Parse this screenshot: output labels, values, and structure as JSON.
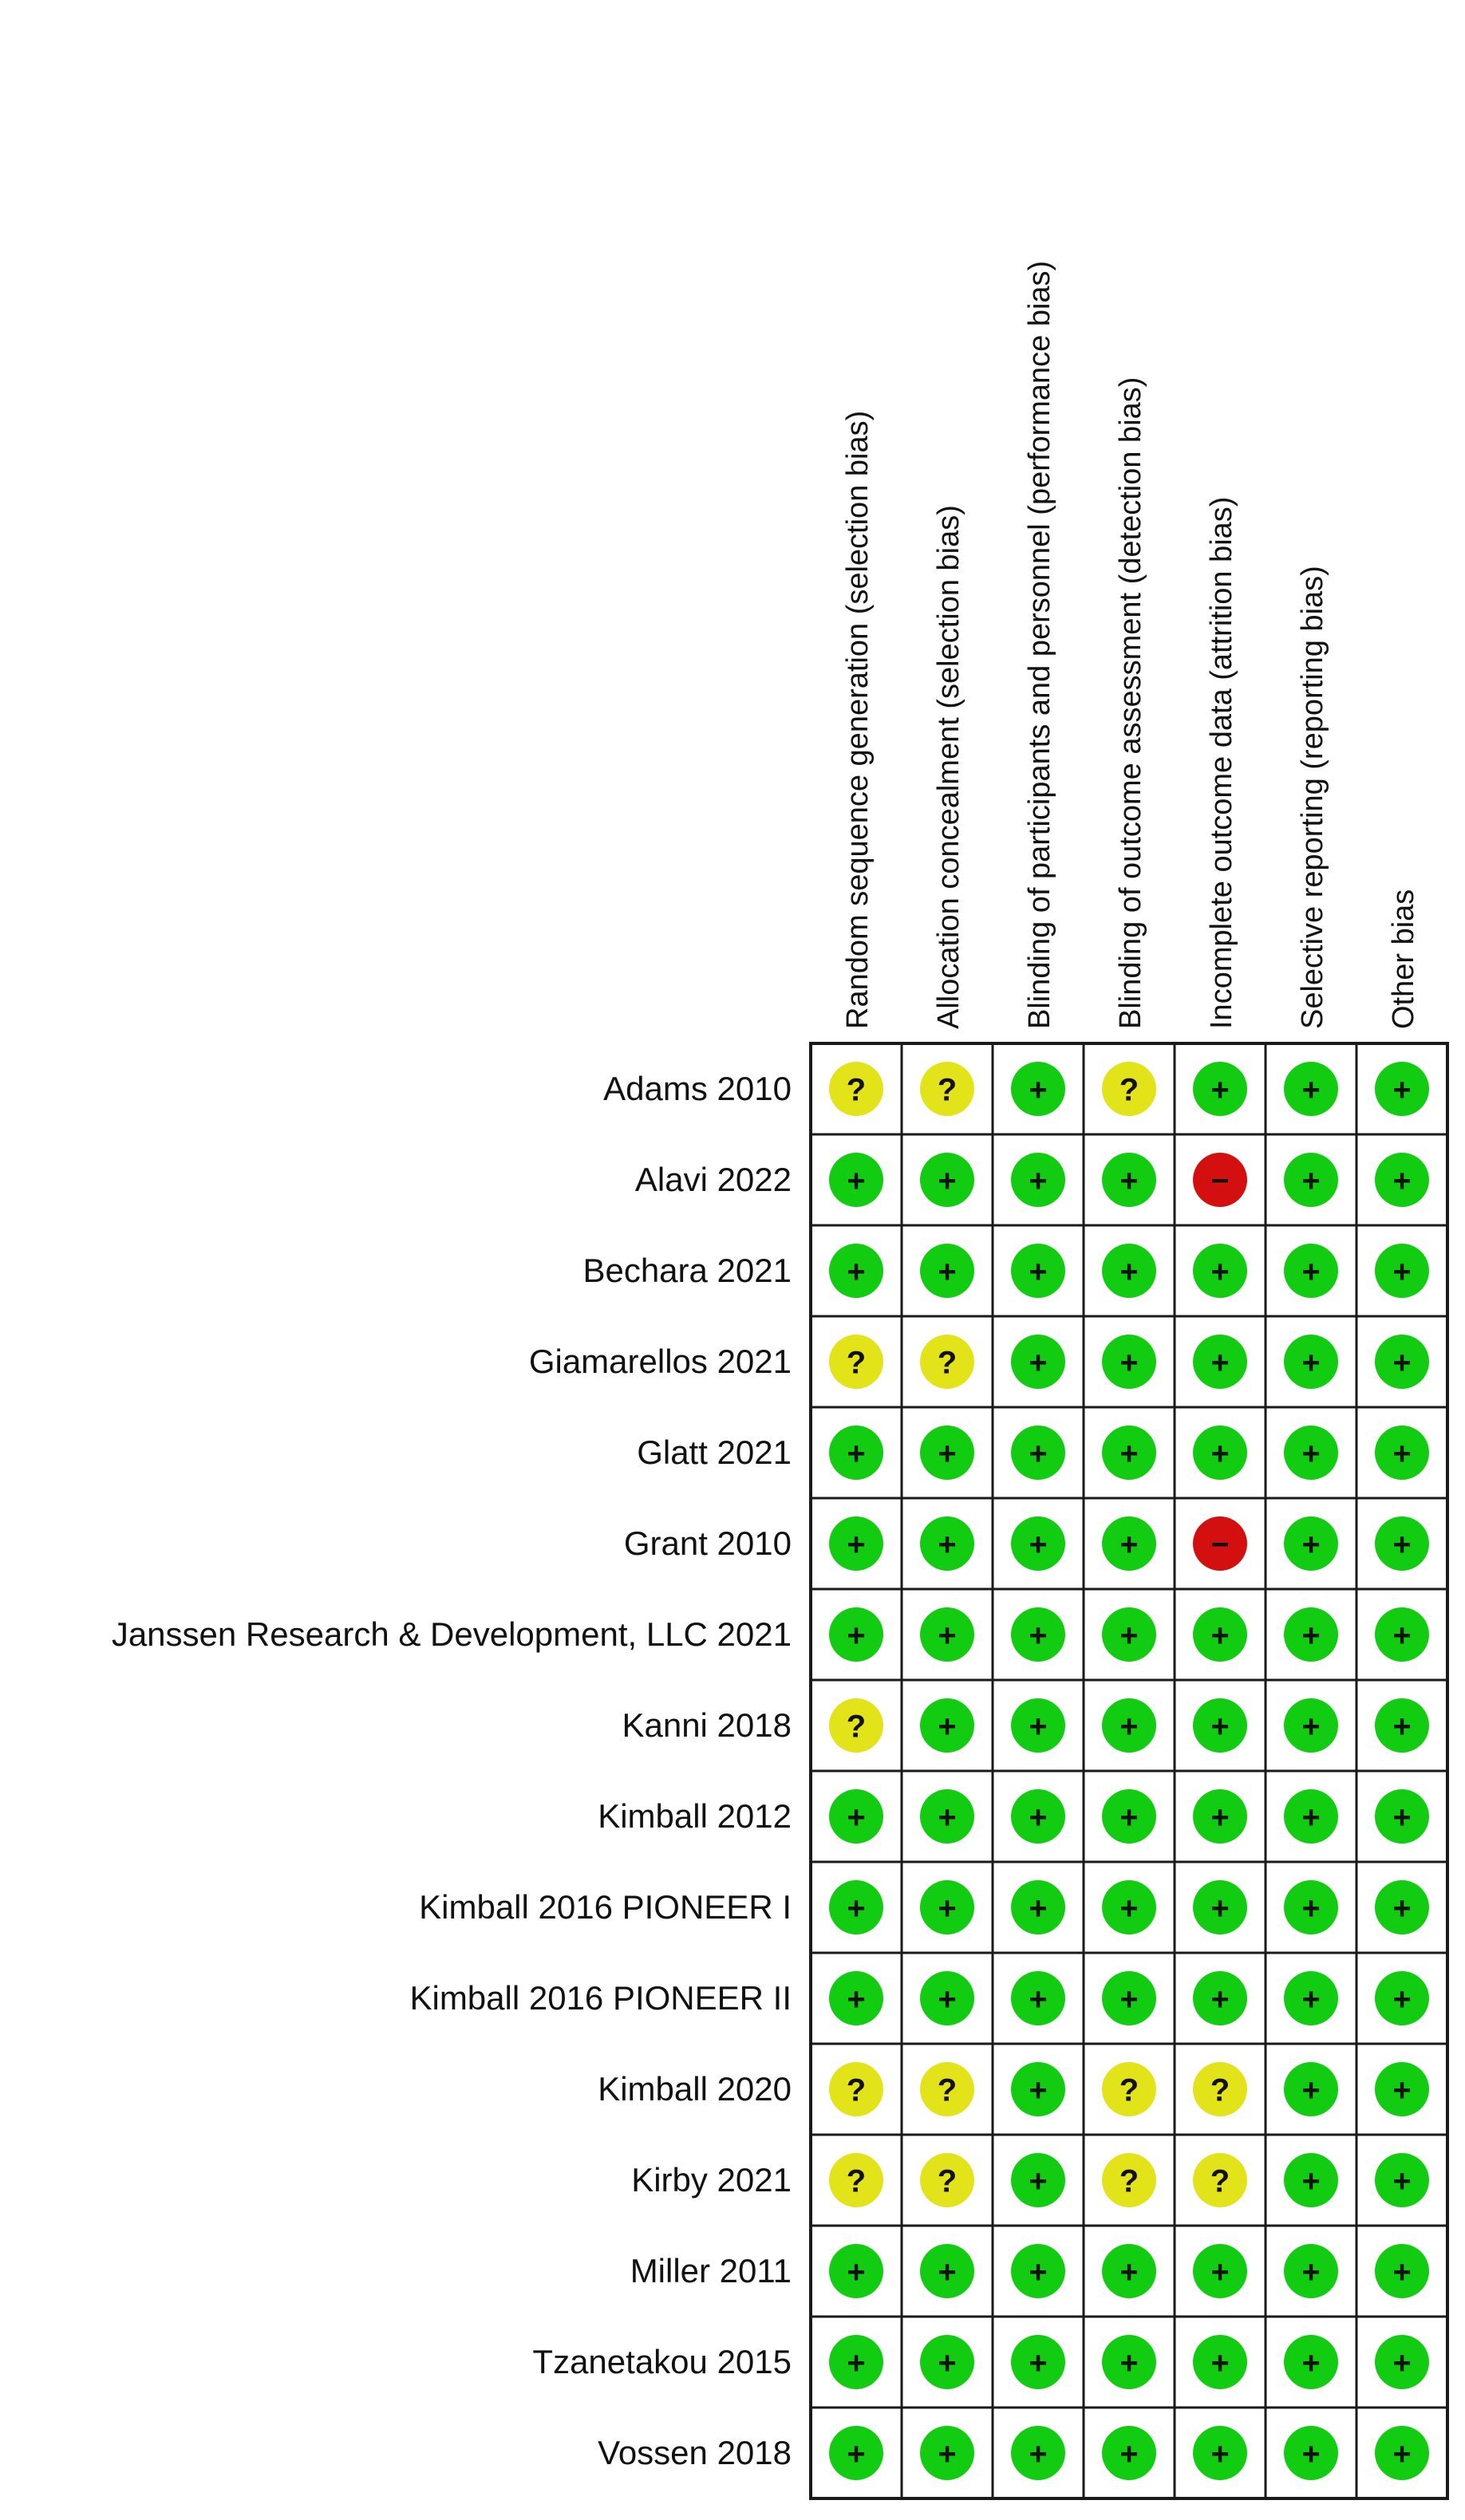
{
  "columns": [
    "Random sequence generation (selection bias)",
    "Allocation concealment (selection bias)",
    "Blinding of participants and personnel (performance bias)",
    "Blinding of outcome assessment (detection bias)",
    "Incomplete outcome data (attrition bias)",
    "Selective reporting (reporting bias)",
    "Other bias"
  ],
  "rows": [
    {
      "study": "Adams 2010",
      "ratings": [
        "unclear",
        "unclear",
        "low",
        "unclear",
        "low",
        "low",
        "low"
      ]
    },
    {
      "study": "Alavi 2022",
      "ratings": [
        "low",
        "low",
        "low",
        "low",
        "high",
        "low",
        "low"
      ]
    },
    {
      "study": "Bechara 2021",
      "ratings": [
        "low",
        "low",
        "low",
        "low",
        "low",
        "low",
        "low"
      ]
    },
    {
      "study": "Giamarellos 2021",
      "ratings": [
        "unclear",
        "unclear",
        "low",
        "low",
        "low",
        "low",
        "low"
      ]
    },
    {
      "study": "Glatt 2021",
      "ratings": [
        "low",
        "low",
        "low",
        "low",
        "low",
        "low",
        "low"
      ]
    },
    {
      "study": "Grant 2010",
      "ratings": [
        "low",
        "low",
        "low",
        "low",
        "high",
        "low",
        "low"
      ]
    },
    {
      "study": "Janssen Research & Development, LLC 2021",
      "ratings": [
        "low",
        "low",
        "low",
        "low",
        "low",
        "low",
        "low"
      ]
    },
    {
      "study": "Kanni 2018",
      "ratings": [
        "unclear",
        "low",
        "low",
        "low",
        "low",
        "low",
        "low"
      ]
    },
    {
      "study": "Kimball 2012",
      "ratings": [
        "low",
        "low",
        "low",
        "low",
        "low",
        "low",
        "low"
      ]
    },
    {
      "study": "Kimball 2016 PIONEER I",
      "ratings": [
        "low",
        "low",
        "low",
        "low",
        "low",
        "low",
        "low"
      ]
    },
    {
      "study": "Kimball 2016 PIONEER II",
      "ratings": [
        "low",
        "low",
        "low",
        "low",
        "low",
        "low",
        "low"
      ]
    },
    {
      "study": "Kimball 2020",
      "ratings": [
        "unclear",
        "unclear",
        "low",
        "unclear",
        "unclear",
        "low",
        "low"
      ]
    },
    {
      "study": "Kirby 2021",
      "ratings": [
        "unclear",
        "unclear",
        "low",
        "unclear",
        "unclear",
        "low",
        "low"
      ]
    },
    {
      "study": "Miller 2011",
      "ratings": [
        "low",
        "low",
        "low",
        "low",
        "low",
        "low",
        "low"
      ]
    },
    {
      "study": "Tzanetakou 2015",
      "ratings": [
        "low",
        "low",
        "low",
        "low",
        "low",
        "low",
        "low"
      ]
    },
    {
      "study": "Vossen 2018",
      "ratings": [
        "low",
        "low",
        "low",
        "low",
        "low",
        "low",
        "low"
      ]
    }
  ],
  "symbols": {
    "low": "+",
    "unclear": "?",
    "high": "−"
  },
  "colors": {
    "low": "#12cc12",
    "unclear": "#e3e31a",
    "high": "#d40f0f",
    "grid": "#1a1a1a",
    "text": "#111111"
  }
}
